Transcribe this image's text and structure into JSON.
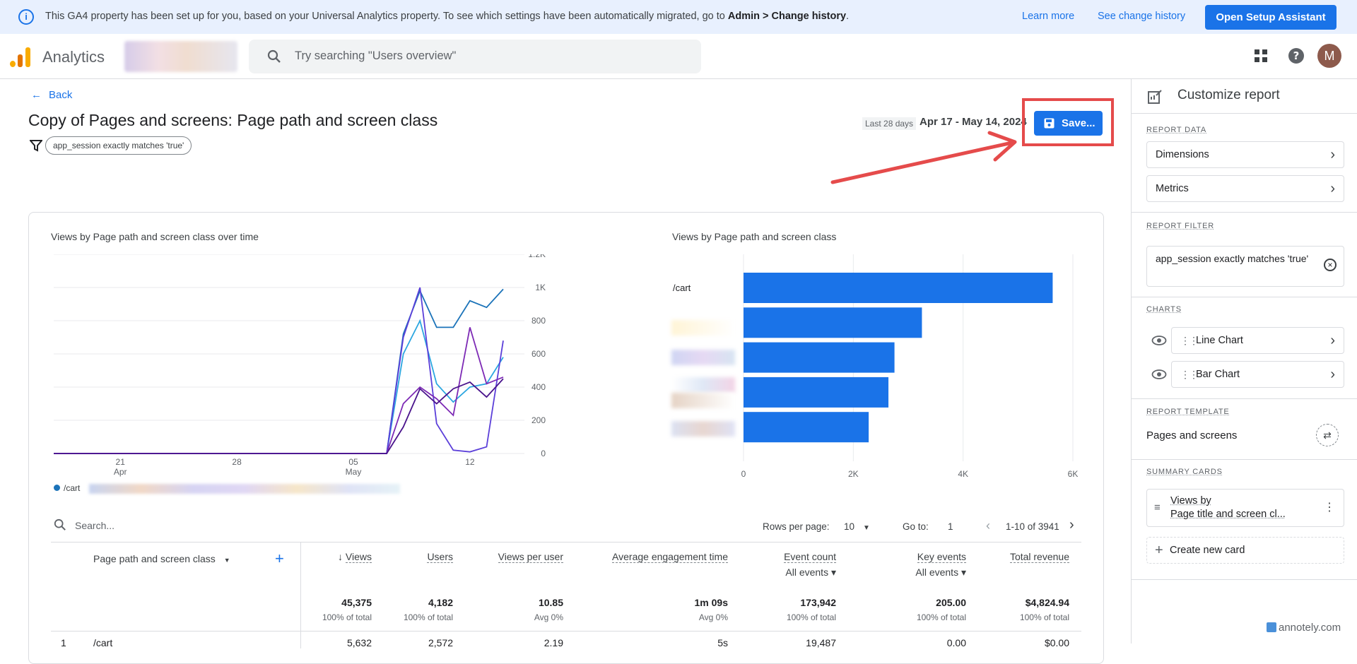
{
  "banner": {
    "message_prefix": "This GA4 property has been set up for you, based on your Universal Analytics property. To see which settings have been automatically migrated, go to ",
    "message_bold": "Admin > Change history",
    "message_suffix": ".",
    "learn_more": "Learn more",
    "see_change_history": "See change history",
    "setup_button": "Open Setup Assistant"
  },
  "header": {
    "brand": "Analytics",
    "search_placeholder": "Try searching \"Users overview\"",
    "avatar_initial": "M"
  },
  "page": {
    "back_label": "Back",
    "title": "Copy of Pages and screens: Page path and screen class",
    "filter_chip": "app_session exactly matches 'true'",
    "date_preset": "Last 28 days",
    "date_range": "Apr 17 - May 14, 2024",
    "save_label": "Save..."
  },
  "colors": {
    "accent": "#1a73e8",
    "annotation_red": "#e54b4b",
    "bar": "#1a73e8"
  },
  "line_chart": {
    "title": "Views by Page path and screen class over time",
    "legend_first": "/cart"
  },
  "bar_chart": {
    "title": "Views by Page path and screen class",
    "first_label": "/cart"
  },
  "chart_data": [
    {
      "type": "line",
      "title": "Views by Page path and screen class over time",
      "x_tick_labels": [
        "21",
        "28",
        "05",
        "12"
      ],
      "x_tick_sublabels": [
        "Apr",
        "",
        "May",
        ""
      ],
      "y_tick_labels": [
        "0",
        "200",
        "400",
        "600",
        "800",
        "1K",
        "1.2K"
      ],
      "ylim": [
        0,
        1200
      ],
      "x": [
        "Apr 17",
        "Apr 18",
        "Apr 19",
        "Apr 20",
        "Apr 21",
        "Apr 22",
        "Apr 23",
        "Apr 24",
        "Apr 25",
        "Apr 26",
        "Apr 27",
        "Apr 28",
        "Apr 29",
        "Apr 30",
        "May 1",
        "May 2",
        "May 3",
        "May 4",
        "May 5",
        "May 6",
        "May 7",
        "May 8",
        "May 9",
        "May 10",
        "May 11",
        "May 12",
        "May 13",
        "May 14"
      ],
      "series": [
        {
          "name": "/cart",
          "color": "#1b73b9",
          "values": [
            0,
            0,
            0,
            0,
            0,
            0,
            0,
            0,
            0,
            0,
            0,
            0,
            0,
            0,
            0,
            0,
            0,
            0,
            0,
            0,
            0,
            720,
            980,
            760,
            760,
            920,
            880,
            990
          ]
        },
        {
          "color": "#2ba6e0",
          "values": [
            0,
            0,
            0,
            0,
            0,
            0,
            0,
            0,
            0,
            0,
            0,
            0,
            0,
            0,
            0,
            0,
            0,
            0,
            0,
            0,
            0,
            600,
            800,
            420,
            310,
            400,
            420,
            580
          ]
        },
        {
          "color": "#5b3fd9",
          "values": [
            0,
            0,
            0,
            0,
            0,
            0,
            0,
            0,
            0,
            0,
            0,
            0,
            0,
            0,
            0,
            0,
            0,
            0,
            0,
            0,
            0,
            700,
            1000,
            180,
            20,
            10,
            40,
            680
          ]
        },
        {
          "color": "#7d2ab5",
          "values": [
            0,
            0,
            0,
            0,
            0,
            0,
            0,
            0,
            0,
            0,
            0,
            0,
            0,
            0,
            0,
            0,
            0,
            0,
            0,
            0,
            0,
            300,
            400,
            330,
            230,
            760,
            420,
            460
          ]
        },
        {
          "color": "#4a148c",
          "values": [
            0,
            0,
            0,
            0,
            0,
            0,
            0,
            0,
            0,
            0,
            0,
            0,
            0,
            0,
            0,
            0,
            0,
            0,
            0,
            0,
            0,
            160,
            390,
            300,
            390,
            430,
            340,
            450
          ]
        }
      ],
      "grid": true
    },
    {
      "type": "bar",
      "title": "Views by Page path and screen class",
      "orientation": "horizontal",
      "categories": [
        "/cart",
        "",
        "",
        "",
        ""
      ],
      "values": [
        5632,
        3250,
        2750,
        2640,
        2280
      ],
      "x_tick_labels": [
        "0",
        "2K",
        "4K",
        "6K"
      ],
      "xlim": [
        0,
        6000
      ],
      "grid": true
    }
  ],
  "table": {
    "search_placeholder": "Search...",
    "rows_per_page_label": "Rows per page:",
    "rows_per_page_value": "10",
    "goto_label": "Go to:",
    "goto_value": "1",
    "range_label": "1-10 of 3941",
    "dimension_header": "Page path and screen class",
    "columns": [
      {
        "label": "Views",
        "sub": "",
        "total": "45,375",
        "pct": "100% of total",
        "row1": "5,632"
      },
      {
        "label": "Users",
        "sub": "",
        "total": "4,182",
        "pct": "100% of total",
        "row1": "2,572"
      },
      {
        "label": "Views per user",
        "sub": "",
        "total": "10.85",
        "pct": "Avg 0%",
        "row1": "2.19"
      },
      {
        "label": "Average engagement time",
        "sub": "",
        "total": "1m 09s",
        "pct": "Avg 0%",
        "row1": "5s"
      },
      {
        "label": "Event count",
        "sub": "All events",
        "total": "173,942",
        "pct": "100% of total",
        "row1": "19,487"
      },
      {
        "label": "Key events",
        "sub": "All events",
        "total": "205.00",
        "pct": "100% of total",
        "row1": "0.00"
      },
      {
        "label": "Total revenue",
        "sub": "",
        "total": "$4,824.94",
        "pct": "100% of total",
        "row1": "$0.00"
      }
    ],
    "first_row": {
      "index": "1",
      "dimension": "/cart"
    }
  },
  "panel": {
    "title": "Customize report",
    "report_data_label": "REPORT DATA",
    "dimensions": "Dimensions",
    "metrics": "Metrics",
    "report_filter_label": "REPORT FILTER",
    "filter_value": "app_session exactly matches 'true'",
    "charts_label": "CHARTS",
    "line_chart": "Line Chart",
    "bar_chart": "Bar Chart",
    "template_label": "REPORT TEMPLATE",
    "template_value": "Pages and screens",
    "summary_label": "SUMMARY CARDS",
    "summary_card_line1": "Views by",
    "summary_card_line2": "Page title and screen cl...",
    "create_card": "Create new card"
  },
  "watermark": "annotely.com"
}
